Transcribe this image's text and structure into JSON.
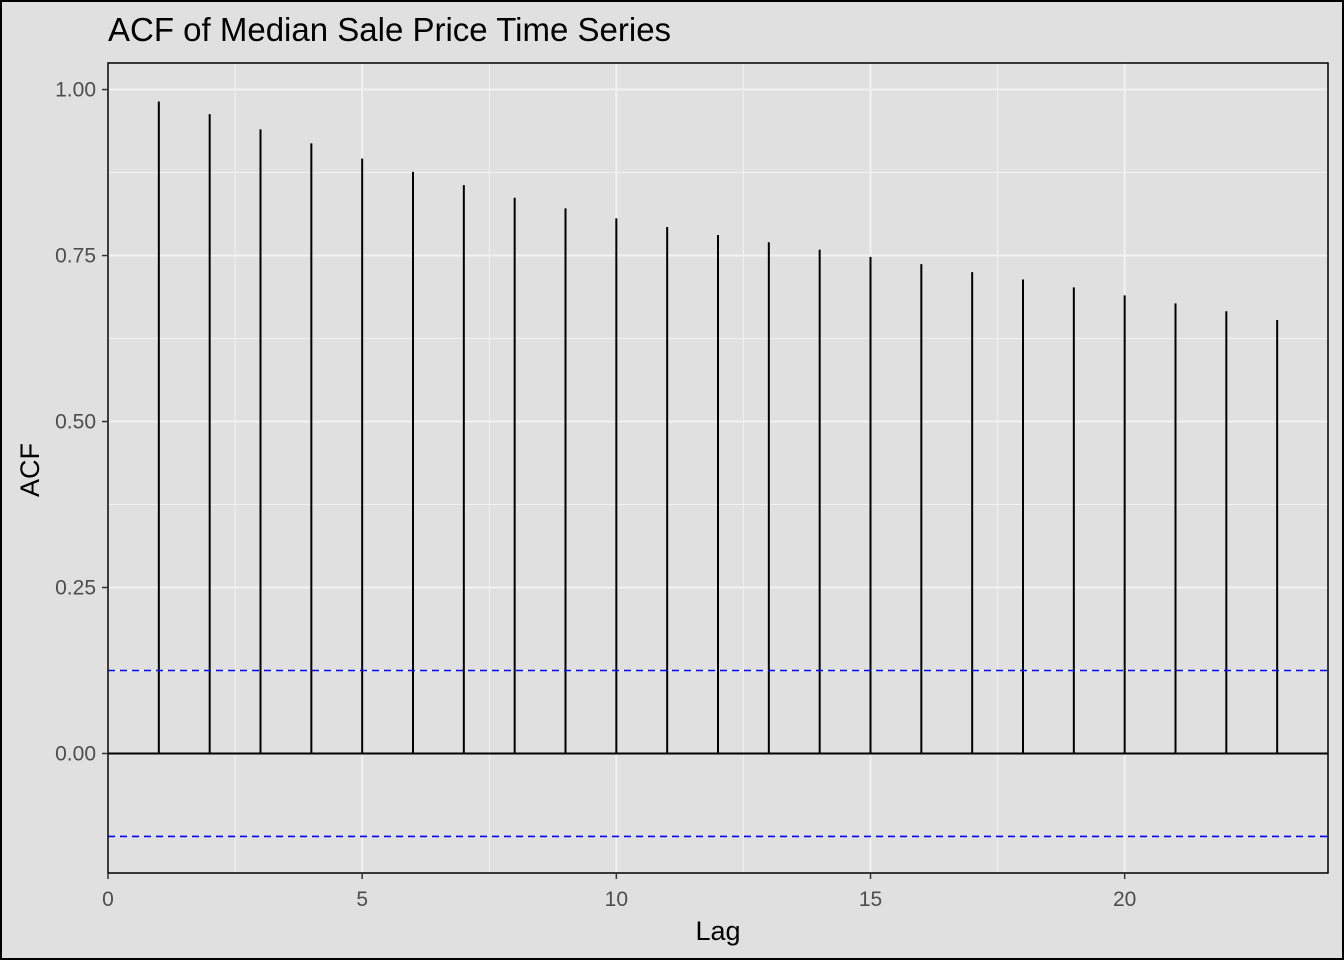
{
  "chart_data": {
    "type": "bar",
    "title": "ACF of Median Sale Price Time Series",
    "xlabel": "Lag",
    "ylabel": "ACF",
    "x": [
      1,
      2,
      3,
      4,
      5,
      6,
      7,
      8,
      9,
      10,
      11,
      12,
      13,
      14,
      15,
      16,
      17,
      18,
      19,
      20,
      21,
      22,
      23
    ],
    "values": [
      0.982,
      0.963,
      0.94,
      0.919,
      0.896,
      0.876,
      0.856,
      0.837,
      0.821,
      0.806,
      0.793,
      0.781,
      0.77,
      0.759,
      0.748,
      0.737,
      0.725,
      0.714,
      0.702,
      0.69,
      0.678,
      0.666,
      0.653
    ],
    "xlim": [
      0,
      24
    ],
    "ylim": [
      -0.18,
      1.04
    ],
    "x_ticks": [
      0,
      5,
      10,
      15,
      20
    ],
    "y_ticks": [
      0,
      0.25,
      0.5,
      0.75,
      1.0
    ],
    "x_tick_labels": [
      "0",
      "5",
      "10",
      "15",
      "20"
    ],
    "y_tick_labels": [
      "0.00",
      "0.25",
      "0.50",
      "0.75",
      "1.00"
    ],
    "confidence_bounds": [
      0.125,
      -0.125
    ],
    "grid": true,
    "colors": {
      "background": "#e0e0e0",
      "panel_border": "#000000",
      "grid": "#f2f2f2",
      "spike": "#000000",
      "zero_line": "#000000",
      "confidence_line": "#0000ff"
    }
  }
}
